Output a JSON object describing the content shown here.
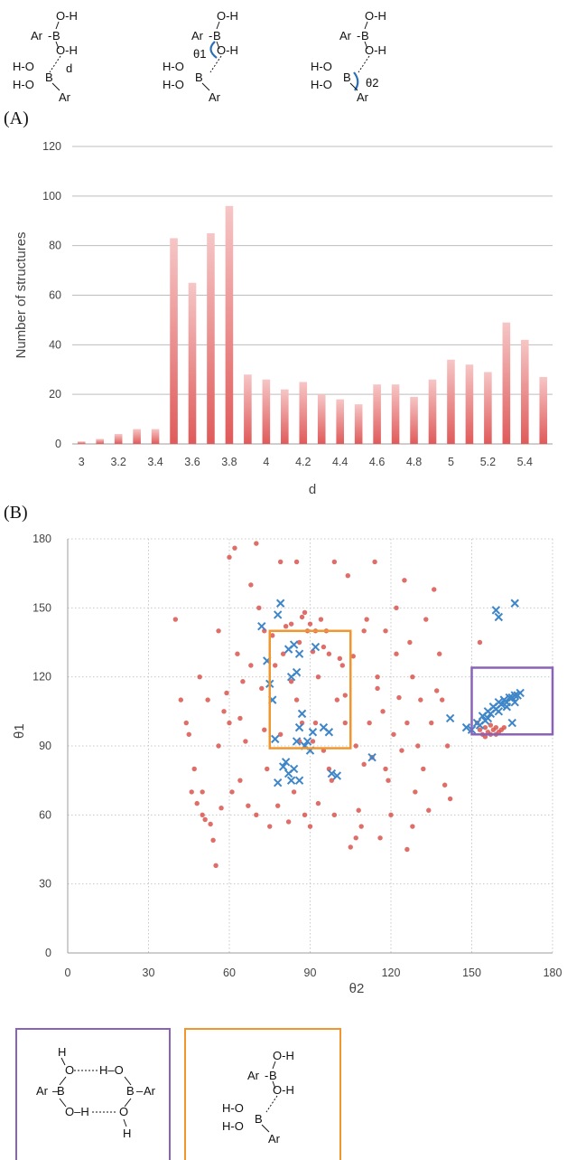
{
  "panel_labels": {
    "a": "(A)",
    "b": "(B)"
  },
  "structures": {
    "label_d": "d",
    "label_theta1": "θ1",
    "label_theta2": "θ2",
    "ar": "Ar",
    "b": "B",
    "oh": "O-H",
    "ho": "H-O",
    "o": "O",
    "h": "H"
  },
  "colors": {
    "bar": "#e05a5a",
    "bar_light": "#f6c6c6",
    "point_red": "#d9544d",
    "point_blue": "#3f86c8",
    "box_orange": "#f0962f",
    "box_purple": "#8a63b8",
    "grid": "#c8c8c8"
  },
  "chart_data": [
    {
      "type": "bar",
      "xlabel": "d",
      "ylabel": "Number of structures",
      "ylim": [
        0,
        120
      ],
      "yticks": [
        0,
        20,
        40,
        60,
        80,
        100,
        120
      ],
      "xtick_labels": [
        "3",
        "3.2",
        "3.4",
        "3.6",
        "3.8",
        "4",
        "4.2",
        "4.4",
        "4.6",
        "4.8",
        "5",
        "5.2",
        "5.4"
      ],
      "categories": [
        "3.0",
        "3.1",
        "3.2",
        "3.3",
        "3.4",
        "3.5",
        "3.6",
        "3.7",
        "3.8",
        "3.9",
        "4.0",
        "4.1",
        "4.2",
        "4.3",
        "4.4",
        "4.5",
        "4.6",
        "4.7",
        "4.8",
        "4.9",
        "5.0",
        "5.1",
        "5.2",
        "5.3",
        "5.4",
        "5.5"
      ],
      "values": [
        1,
        2,
        4,
        6,
        6,
        83,
        65,
        85,
        96,
        28,
        26,
        22,
        25,
        20,
        18,
        16,
        24,
        24,
        19,
        26,
        34,
        32,
        29,
        49,
        42,
        27
      ],
      "grid": "horizontal"
    },
    {
      "type": "scatter",
      "xlabel": "θ2",
      "ylabel": "θ1",
      "xlim": [
        0,
        180
      ],
      "ylim": [
        0,
        180
      ],
      "xticks": [
        0,
        30,
        60,
        90,
        120,
        150,
        180
      ],
      "yticks": [
        0,
        30,
        60,
        90,
        120,
        150,
        180
      ],
      "grid": "dotted",
      "regions": [
        {
          "name": "orange",
          "x": [
            75,
            105
          ],
          "y": [
            89,
            140
          ]
        },
        {
          "name": "purple",
          "x": [
            150,
            180
          ],
          "y": [
            95,
            124
          ]
        }
      ],
      "series": [
        {
          "marker": "dot",
          "color": "red",
          "points": [
            [
              40,
              145
            ],
            [
              42,
              110
            ],
            [
              44,
              100
            ],
            [
              45,
              95
            ],
            [
              46,
              70
            ],
            [
              48,
              65
            ],
            [
              49,
              120
            ],
            [
              50,
              60
            ],
            [
              51,
              58
            ],
            [
              52,
              110
            ],
            [
              53,
              56
            ],
            [
              54,
              49
            ],
            [
              55,
              38
            ],
            [
              56,
              140
            ],
            [
              57,
              63
            ],
            [
              58,
              105
            ],
            [
              59,
              113
            ],
            [
              60,
              172
            ],
            [
              61,
              70
            ],
            [
              62,
              176
            ],
            [
              63,
              130
            ],
            [
              64,
              102
            ],
            [
              65,
              118
            ],
            [
              66,
              92
            ],
            [
              67,
              64
            ],
            [
              68,
              160
            ],
            [
              70,
              178
            ],
            [
              71,
              150
            ],
            [
              72,
              115
            ],
            [
              73,
              97
            ],
            [
              74,
              80
            ],
            [
              75,
              55
            ],
            [
              76,
              138
            ],
            [
              77,
              125
            ],
            [
              78,
              64
            ],
            [
              79,
              170
            ],
            [
              80,
              130
            ],
            [
              81,
              142
            ],
            [
              82,
              57
            ],
            [
              83,
              143
            ],
            [
              84,
              70
            ],
            [
              85,
              110
            ],
            [
              86,
              92
            ],
            [
              87,
              146
            ],
            [
              88,
              60
            ],
            [
              89,
              140
            ],
            [
              90,
              143
            ],
            [
              90,
              55
            ],
            [
              91,
              131
            ],
            [
              92,
              100
            ],
            [
              93,
              120
            ],
            [
              94,
              145
            ],
            [
              95,
              88
            ],
            [
              96,
              140
            ],
            [
              97,
              130
            ],
            [
              98,
              75
            ],
            [
              99,
              60
            ],
            [
              100,
              110
            ],
            [
              101,
              128
            ],
            [
              102,
              125
            ],
            [
              103,
              100
            ],
            [
              104,
              164
            ],
            [
              105,
              46
            ],
            [
              106,
              129
            ],
            [
              107,
              90
            ],
            [
              108,
              62
            ],
            [
              109,
              55
            ],
            [
              110,
              82
            ],
            [
              111,
              145
            ],
            [
              112,
              100
            ],
            [
              113,
              85
            ],
            [
              114,
              170
            ],
            [
              115,
              120
            ],
            [
              116,
              50
            ],
            [
              117,
              105
            ],
            [
              118,
              80
            ],
            [
              119,
              75
            ],
            [
              120,
              60
            ],
            [
              121,
              95
            ],
            [
              122,
              130
            ],
            [
              123,
              111
            ],
            [
              124,
              88
            ],
            [
              125,
              162
            ],
            [
              126,
              45
            ],
            [
              127,
              135
            ],
            [
              128,
              120
            ],
            [
              129,
              70
            ],
            [
              130,
              90
            ],
            [
              131,
              110
            ],
            [
              132,
              80
            ],
            [
              133,
              145
            ],
            [
              134,
              62
            ],
            [
              135,
              100
            ],
            [
              136,
              158
            ],
            [
              137,
              114
            ],
            [
              138,
              130
            ],
            [
              139,
              110
            ],
            [
              140,
              73
            ],
            [
              141,
              90
            ],
            [
              142,
              67
            ],
            [
              88,
              148
            ],
            [
              86,
              135
            ],
            [
              92,
              140
            ],
            [
              95,
              133
            ],
            [
              83,
              118
            ],
            [
              87,
              100
            ],
            [
              91,
              92
            ],
            [
              79,
              95
            ],
            [
              97,
              80
            ],
            [
              103,
              112
            ],
            [
              118,
              140
            ],
            [
              122,
              150
            ],
            [
              107,
              50
            ],
            [
              60,
              100
            ],
            [
              64,
              75
            ],
            [
              50,
              70
            ],
            [
              56,
              90
            ],
            [
              47,
              80
            ],
            [
              70,
              60
            ],
            [
              68,
              125
            ],
            [
              73,
              140
            ],
            [
              99,
              170
            ],
            [
              85,
              170
            ],
            [
              93,
              65
            ],
            [
              110,
              140
            ],
            [
              115,
              115
            ],
            [
              126,
              100
            ],
            [
              128,
              55
            ],
            [
              153,
              97
            ],
            [
              154,
              95
            ],
            [
              155,
              94
            ],
            [
              156,
              96
            ],
            [
              157,
              95
            ],
            [
              158,
              97
            ],
            [
              159,
              98
            ],
            [
              160,
              96
            ],
            [
              161,
              97
            ],
            [
              162,
              98
            ],
            [
              155,
              98
            ],
            [
              157,
              99
            ],
            [
              159,
              95
            ],
            [
              152,
              100
            ],
            [
              153,
              135
            ]
          ]
        },
        {
          "marker": "x",
          "color": "blue",
          "points": [
            [
              72,
              142
            ],
            [
              74,
              127
            ],
            [
              75,
              117
            ],
            [
              76,
              110
            ],
            [
              77,
              93
            ],
            [
              78,
              147
            ],
            [
              79,
              152
            ],
            [
              80,
              81
            ],
            [
              81,
              83
            ],
            [
              82,
              78
            ],
            [
              83,
              75
            ],
            [
              84,
              80
            ],
            [
              85,
              92
            ],
            [
              86,
              98
            ],
            [
              87,
              104
            ],
            [
              88,
              90
            ],
            [
              89,
              92
            ],
            [
              90,
              88
            ],
            [
              91,
              96
            ],
            [
              92,
              133
            ],
            [
              82,
              132
            ],
            [
              84,
              134
            ],
            [
              86,
              130
            ],
            [
              85,
              122
            ],
            [
              83,
              120
            ],
            [
              78,
              74
            ],
            [
              86,
              75
            ],
            [
              95,
              98
            ],
            [
              97,
              96
            ],
            [
              98,
              78
            ],
            [
              100,
              77
            ],
            [
              113,
              85
            ],
            [
              142,
              102
            ],
            [
              148,
              98
            ],
            [
              150,
              97
            ],
            [
              152,
              100
            ],
            [
              154,
              103
            ],
            [
              156,
              105
            ],
            [
              158,
              107
            ],
            [
              160,
              109
            ],
            [
              162,
              110
            ],
            [
              164,
              111
            ],
            [
              166,
              112
            ],
            [
              168,
              113
            ],
            [
              155,
              101
            ],
            [
              157,
              104
            ],
            [
              159,
              106
            ],
            [
              161,
              108
            ],
            [
              163,
              109
            ],
            [
              165,
              111
            ],
            [
              153,
              99
            ],
            [
              156,
              102
            ],
            [
              160,
              105
            ],
            [
              163,
              107
            ],
            [
              166,
              109
            ],
            [
              167,
              112
            ],
            [
              159,
              149
            ],
            [
              160,
              146
            ],
            [
              166,
              152
            ],
            [
              165,
              100
            ]
          ]
        }
      ]
    }
  ]
}
